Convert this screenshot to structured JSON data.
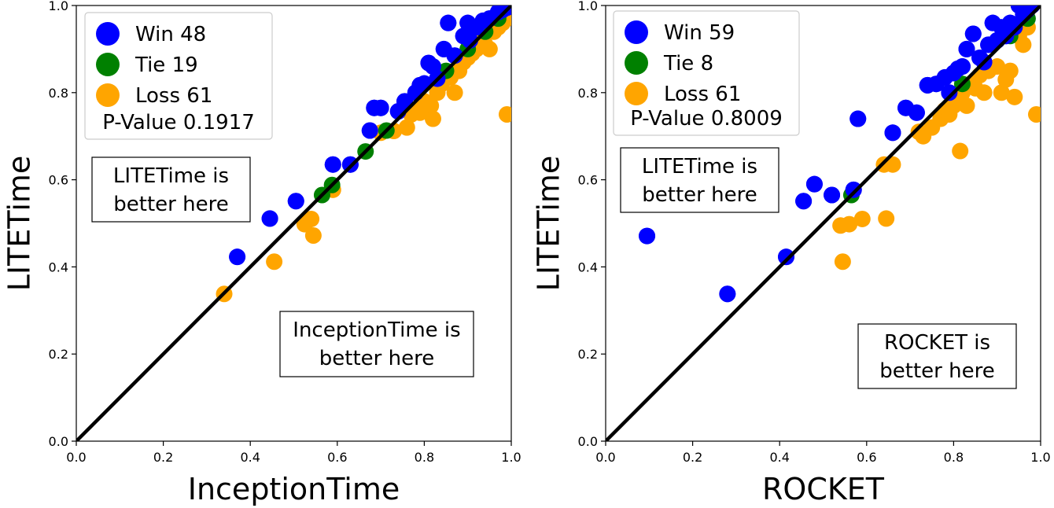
{
  "chart_data": [
    {
      "type": "scatter",
      "xlabel": "InceptionTime",
      "ylabel": "LITETime",
      "xlim": [
        0.0,
        1.0
      ],
      "ylim": [
        0.0,
        1.0
      ],
      "xticks": [
        "0.0",
        "0.2",
        "0.4",
        "0.6",
        "0.8",
        "1.0"
      ],
      "yticks": [
        "0.0",
        "0.2",
        "0.4",
        "0.6",
        "0.8",
        "1.0"
      ],
      "diagonal": true,
      "grid": false,
      "legend_position": "top-left",
      "legend": {
        "entries": [
          "Win 48",
          "Tie 19",
          "Loss 61"
        ],
        "pvalue": "P-Value 0.1917"
      },
      "annotations": [
        {
          "lines": [
            "LITETime is",
            "better here"
          ],
          "region": "upper-left"
        },
        {
          "lines": [
            "InceptionTime is",
            "better here"
          ],
          "region": "lower-right"
        }
      ],
      "series": [
        {
          "name": "Win 48",
          "color": "#0000ff",
          "points": [
            [
              0.37,
              0.423
            ],
            [
              0.445,
              0.511
            ],
            [
              0.505,
              0.551
            ],
            [
              0.59,
              0.635
            ],
            [
              0.63,
              0.635
            ],
            [
              0.675,
              0.713
            ],
            [
              0.685,
              0.765
            ],
            [
              0.7,
              0.765
            ],
            [
              0.74,
              0.757
            ],
            [
              0.755,
              0.78
            ],
            [
              0.78,
              0.8
            ],
            [
              0.79,
              0.817
            ],
            [
              0.8,
              0.821
            ],
            [
              0.81,
              0.868
            ],
            [
              0.82,
              0.86
            ],
            [
              0.83,
              0.832
            ],
            [
              0.845,
              0.9
            ],
            [
              0.855,
              0.96
            ],
            [
              0.87,
              0.885
            ],
            [
              0.89,
              0.93
            ],
            [
              0.9,
              0.96
            ],
            [
              0.905,
              0.92
            ],
            [
              0.92,
              0.95
            ],
            [
              0.935,
              0.965
            ],
            [
              0.95,
              0.97
            ],
            [
              0.97,
              0.985
            ],
            [
              0.98,
              0.99
            ],
            [
              0.99,
              0.995
            ]
          ]
        },
        {
          "name": "Tie 19",
          "color": "#008000",
          "points": [
            [
              0.565,
              0.565
            ],
            [
              0.588,
              0.588
            ],
            [
              0.665,
              0.665
            ],
            [
              0.713,
              0.713
            ],
            [
              0.85,
              0.85
            ],
            [
              0.9,
              0.9
            ],
            [
              0.94,
              0.94
            ],
            [
              0.97,
              0.97
            ]
          ]
        },
        {
          "name": "Loss 61",
          "color": "#ffa500",
          "points": [
            [
              0.34,
              0.338
            ],
            [
              0.455,
              0.412
            ],
            [
              0.525,
              0.498
            ],
            [
              0.54,
              0.51
            ],
            [
              0.545,
              0.472
            ],
            [
              0.59,
              0.577
            ],
            [
              0.7,
              0.708
            ],
            [
              0.73,
              0.712
            ],
            [
              0.76,
              0.72
            ],
            [
              0.77,
              0.75
            ],
            [
              0.78,
              0.76
            ],
            [
              0.79,
              0.754
            ],
            [
              0.8,
              0.78
            ],
            [
              0.815,
              0.77
            ],
            [
              0.82,
              0.74
            ],
            [
              0.83,
              0.8
            ],
            [
              0.84,
              0.82
            ],
            [
              0.86,
              0.835
            ],
            [
              0.87,
              0.8
            ],
            [
              0.88,
              0.85
            ],
            [
              0.89,
              0.87
            ],
            [
              0.9,
              0.88
            ],
            [
              0.91,
              0.89
            ],
            [
              0.92,
              0.9
            ],
            [
              0.93,
              0.92
            ],
            [
              0.94,
              0.91
            ],
            [
              0.95,
              0.9
            ],
            [
              0.96,
              0.94
            ],
            [
              0.97,
              0.95
            ],
            [
              0.98,
              0.96
            ],
            [
              0.99,
              0.75
            ],
            [
              0.99,
              0.97
            ]
          ]
        }
      ]
    },
    {
      "type": "scatter",
      "xlabel": "ROCKET",
      "ylabel": "LITETime",
      "xlim": [
        0.0,
        1.0
      ],
      "ylim": [
        0.0,
        1.0
      ],
      "xticks": [
        "0.0",
        "0.2",
        "0.4",
        "0.6",
        "0.8",
        "1.0"
      ],
      "yticks": [
        "0.0",
        "0.2",
        "0.4",
        "0.6",
        "0.8",
        "1.0"
      ],
      "diagonal": true,
      "grid": false,
      "legend_position": "top-left",
      "legend": {
        "entries": [
          "Win 59",
          "Tie 8",
          "Loss 61"
        ],
        "pvalue": "P-Value 0.8009"
      },
      "annotations": [
        {
          "lines": [
            "LITETime is",
            "better here"
          ],
          "region": "upper-left"
        },
        {
          "lines": [
            "ROCKET is",
            "better here"
          ],
          "region": "lower-right"
        }
      ],
      "series": [
        {
          "name": "Win 59",
          "color": "#0000ff",
          "points": [
            [
              0.095,
              0.471
            ],
            [
              0.28,
              0.338
            ],
            [
              0.415,
              0.423
            ],
            [
              0.455,
              0.551
            ],
            [
              0.48,
              0.59
            ],
            [
              0.52,
              0.565
            ],
            [
              0.57,
              0.577
            ],
            [
              0.58,
              0.74
            ],
            [
              0.66,
              0.708
            ],
            [
              0.69,
              0.765
            ],
            [
              0.715,
              0.754
            ],
            [
              0.74,
              0.817
            ],
            [
              0.76,
              0.82
            ],
            [
              0.78,
              0.835
            ],
            [
              0.79,
              0.8
            ],
            [
              0.8,
              0.845
            ],
            [
              0.81,
              0.855
            ],
            [
              0.82,
              0.86
            ],
            [
              0.83,
              0.9
            ],
            [
              0.845,
              0.935
            ],
            [
              0.86,
              0.88
            ],
            [
              0.87,
              0.87
            ],
            [
              0.88,
              0.91
            ],
            [
              0.89,
              0.96
            ],
            [
              0.9,
              0.92
            ],
            [
              0.91,
              0.95
            ],
            [
              0.92,
              0.93
            ],
            [
              0.93,
              0.96
            ],
            [
              0.94,
              0.95
            ],
            [
              0.95,
              1.0
            ],
            [
              0.96,
              0.98
            ],
            [
              0.97,
              0.99
            ],
            [
              0.98,
              1.0
            ]
          ]
        },
        {
          "name": "Tie 8",
          "color": "#008000",
          "points": [
            [
              0.565,
              0.565
            ],
            [
              0.82,
              0.82
            ],
            [
              0.93,
              0.93
            ],
            [
              0.97,
              0.97
            ]
          ]
        },
        {
          "name": "Loss 61",
          "color": "#ffa500",
          "points": [
            [
              0.54,
              0.495
            ],
            [
              0.545,
              0.412
            ],
            [
              0.56,
              0.498
            ],
            [
              0.59,
              0.51
            ],
            [
              0.64,
              0.635
            ],
            [
              0.645,
              0.511
            ],
            [
              0.66,
              0.635
            ],
            [
              0.72,
              0.71
            ],
            [
              0.73,
              0.7
            ],
            [
              0.75,
              0.72
            ],
            [
              0.77,
              0.74
            ],
            [
              0.78,
              0.76
            ],
            [
              0.79,
              0.75
            ],
            [
              0.8,
              0.77
            ],
            [
              0.81,
              0.78
            ],
            [
              0.815,
              0.666
            ],
            [
              0.82,
              0.8
            ],
            [
              0.83,
              0.77
            ],
            [
              0.84,
              0.82
            ],
            [
              0.85,
              0.81
            ],
            [
              0.86,
              0.84
            ],
            [
              0.87,
              0.8
            ],
            [
              0.88,
              0.85
            ],
            [
              0.9,
              0.86
            ],
            [
              0.91,
              0.8
            ],
            [
              0.92,
              0.83
            ],
            [
              0.93,
              0.85
            ],
            [
              0.94,
              0.79
            ],
            [
              0.95,
              0.93
            ],
            [
              0.96,
              0.91
            ],
            [
              0.97,
              0.95
            ],
            [
              0.99,
              0.75
            ]
          ]
        }
      ]
    }
  ]
}
